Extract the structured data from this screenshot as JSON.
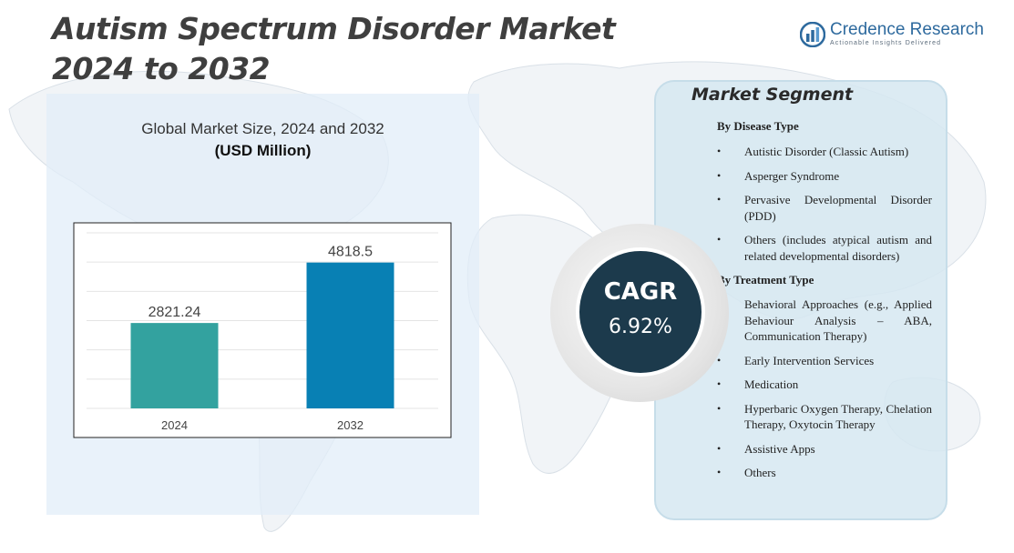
{
  "header": {
    "title_line1": "Autism Spectrum Disorder Market",
    "title_line2": "2024 to 2032"
  },
  "brand": {
    "name": "Credence Research",
    "tagline": "Actionable Insights Delivered",
    "icon": "bar-chart-logo-icon",
    "color": "#2e6a9e"
  },
  "chart": {
    "title": "Global Market Size, 2024 and 2032",
    "unit": "(USD Million)"
  },
  "chart_data": {
    "type": "bar",
    "categories": [
      "2024",
      "2032"
    ],
    "values": [
      2821.24,
      4818.5
    ],
    "value_labels": [
      "2821.24",
      "4818.5"
    ],
    "colors": [
      "#33a29f",
      "#0880b4"
    ],
    "title": "Global Market Size, 2024 and 2032",
    "ylabel": "(USD Million)",
    "xlabel": "",
    "ylim": [
      0,
      5800
    ],
    "grid": true,
    "legend": "none"
  },
  "cagr": {
    "label": "CAGR",
    "value": "6.92%",
    "color": "#1c3a4c"
  },
  "segments": {
    "title": "Market Segment",
    "groups": [
      {
        "heading": "By Disease Type",
        "items": [
          "Autistic Disorder (Classic Autism)",
          "Asperger Syndrome",
          "Pervasive Developmental Disorder (PDD)",
          "Others (includes atypical autism and related developmental disorders)"
        ]
      },
      {
        "heading": "By Treatment Type",
        "items": [
          "Behavioral Approaches (e.g., Applied Behaviour Analysis – ABA, Communication Therapy)",
          "Early Intervention Services",
          "Medication",
          "Hyperbaric Oxygen Therapy, Chelation Therapy, Oxytocin Therapy",
          "Assistive Apps",
          "Others"
        ]
      }
    ]
  }
}
